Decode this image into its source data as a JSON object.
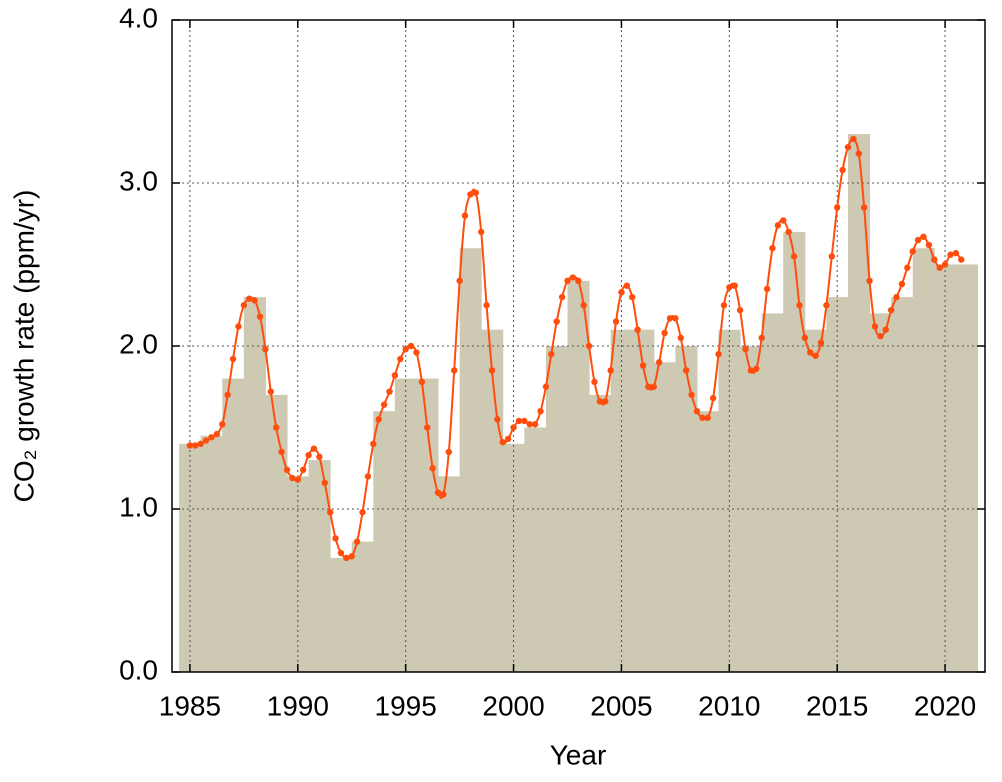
{
  "chart_data": {
    "type": "combo",
    "x_label": "Year",
    "y_label": "CO₂ growth rate (ppm/yr)",
    "xlim": [
      1984.17,
      2021.85
    ],
    "ylim": [
      0,
      4
    ],
    "xticks": [
      1985,
      1990,
      1995,
      2000,
      2005,
      2010,
      2015,
      2020
    ],
    "yticks": [
      {
        "value": 0,
        "label": "0.0"
      },
      {
        "value": 1,
        "label": "1.0"
      },
      {
        "value": 2,
        "label": "2.0"
      },
      {
        "value": 3,
        "label": "3.0"
      },
      {
        "value": 4,
        "label": "4.0"
      }
    ],
    "grid": true,
    "series": [
      {
        "type": "bar",
        "color": "#cdc9b3",
        "x": [
          1985,
          1986,
          1987,
          1988,
          1989,
          1990,
          1991,
          1992,
          1993,
          1994,
          1995,
          1996,
          1997,
          1998,
          1999,
          2000,
          2001,
          2002,
          2003,
          2004,
          2005,
          2006,
          2007,
          2008,
          2009,
          2010,
          2011,
          2012,
          2013,
          2014,
          2015,
          2016,
          2017,
          2018,
          2019,
          2020,
          2021
        ],
        "values": [
          1.4,
          1.45,
          1.8,
          2.3,
          1.7,
          1.2,
          1.3,
          0.7,
          0.8,
          1.6,
          1.8,
          1.8,
          1.2,
          2.6,
          2.1,
          1.4,
          1.5,
          2.0,
          2.4,
          1.7,
          2.1,
          2.1,
          1.9,
          2.0,
          1.6,
          2.1,
          2.0,
          2.2,
          2.7,
          2.1,
          2.3,
          3.3,
          2.2,
          2.3,
          2.6,
          2.5,
          2.5
        ]
      },
      {
        "type": "line",
        "color": "#ff4d0d",
        "x": [
          1985,
          1985.25,
          1985.5,
          1985.75,
          1986,
          1986.25,
          1986.5,
          1986.75,
          1987,
          1987.25,
          1987.5,
          1987.75,
          1988,
          1988.25,
          1988.5,
          1988.75,
          1989,
          1989.25,
          1989.5,
          1989.75,
          1990,
          1990.25,
          1990.5,
          1990.75,
          1991,
          1991.25,
          1991.5,
          1991.75,
          1992,
          1992.25,
          1992.5,
          1992.75,
          1993,
          1993.25,
          1993.5,
          1993.75,
          1994,
          1994.25,
          1994.5,
          1994.75,
          1995,
          1995.25,
          1995.5,
          1995.75,
          1996,
          1996.25,
          1996.5,
          1996.75,
          1997,
          1997.25,
          1997.5,
          1997.75,
          1998,
          1998.25,
          1998.5,
          1998.75,
          1999,
          1999.25,
          1999.5,
          1999.75,
          2000,
          2000.25,
          2000.5,
          2000.75,
          2001,
          2001.25,
          2001.5,
          2001.75,
          2002,
          2002.25,
          2002.5,
          2002.75,
          2003,
          2003.25,
          2003.5,
          2003.75,
          2004,
          2004.25,
          2004.5,
          2004.75,
          2005,
          2005.25,
          2005.5,
          2005.75,
          2006,
          2006.25,
          2006.5,
          2006.75,
          2007,
          2007.25,
          2007.5,
          2007.75,
          2008,
          2008.25,
          2008.5,
          2008.75,
          2009,
          2009.25,
          2009.5,
          2009.75,
          2010,
          2010.25,
          2010.5,
          2010.75,
          2011,
          2011.25,
          2011.5,
          2011.75,
          2012,
          2012.25,
          2012.5,
          2012.75,
          2013,
          2013.25,
          2013.5,
          2013.75,
          2014,
          2014.25,
          2014.5,
          2014.75,
          2015,
          2015.25,
          2015.5,
          2015.75,
          2016,
          2016.25,
          2016.5,
          2016.75,
          2017,
          2017.25,
          2017.5,
          2017.75,
          2018,
          2018.25,
          2018.5,
          2018.75,
          2019,
          2019.25,
          2019.5,
          2019.75,
          2020,
          2020.25,
          2020.5,
          2020.75
        ],
        "values": [
          1.39,
          1.39,
          1.4,
          1.42,
          1.44,
          1.46,
          1.52,
          1.7,
          1.92,
          2.12,
          2.25,
          2.29,
          2.28,
          2.18,
          1.98,
          1.72,
          1.5,
          1.35,
          1.24,
          1.19,
          1.18,
          1.24,
          1.33,
          1.37,
          1.32,
          1.16,
          0.98,
          0.82,
          0.73,
          0.7,
          0.71,
          0.8,
          0.98,
          1.2,
          1.4,
          1.55,
          1.64,
          1.72,
          1.82,
          1.92,
          1.98,
          2.0,
          1.96,
          1.78,
          1.5,
          1.25,
          1.1,
          1.09,
          1.35,
          1.85,
          2.4,
          2.8,
          2.93,
          2.94,
          2.7,
          2.25,
          1.85,
          1.55,
          1.41,
          1.43,
          1.5,
          1.54,
          1.54,
          1.52,
          1.52,
          1.6,
          1.75,
          1.95,
          2.15,
          2.3,
          2.4,
          2.42,
          2.4,
          2.25,
          2.0,
          1.78,
          1.66,
          1.66,
          1.85,
          2.15,
          2.33,
          2.37,
          2.3,
          2.1,
          1.88,
          1.75,
          1.75,
          1.9,
          2.08,
          2.17,
          2.17,
          2.05,
          1.85,
          1.7,
          1.6,
          1.56,
          1.56,
          1.68,
          1.95,
          2.25,
          2.36,
          2.37,
          2.22,
          1.98,
          1.85,
          1.86,
          2.05,
          2.35,
          2.6,
          2.74,
          2.77,
          2.7,
          2.55,
          2.25,
          2.05,
          1.96,
          1.94,
          2.02,
          2.25,
          2.55,
          2.85,
          3.08,
          3.22,
          3.27,
          3.18,
          2.85,
          2.4,
          2.12,
          2.06,
          2.1,
          2.22,
          2.3,
          2.38,
          2.48,
          2.58,
          2.65,
          2.67,
          2.62,
          2.53,
          2.48,
          2.5,
          2.56,
          2.57,
          2.53
        ]
      }
    ]
  }
}
